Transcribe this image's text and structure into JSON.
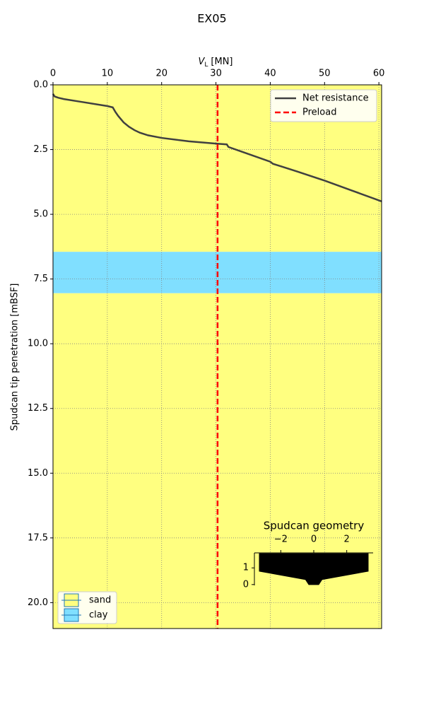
{
  "chart_data": [
    {
      "type": "line",
      "title": "EX05",
      "x_label": "V",
      "x_label_sub": "L",
      "x_label_unit": "[MN]",
      "y_label": "Spudcan tip penetration [mBSF]",
      "xlim": [
        0,
        60.5
      ],
      "ylim": [
        0,
        21
      ],
      "y_inverted": true,
      "grid": true,
      "xticks": [
        0,
        10,
        20,
        30,
        40,
        50,
        60
      ],
      "yticks": [
        {
          "value": 0,
          "label": "0.0"
        },
        2.5,
        {
          "value": 5,
          "label": "5.0"
        },
        7.5,
        {
          "value": 10,
          "label": "10.0"
        },
        12.5,
        {
          "value": 15,
          "label": "15.0"
        },
        17.5,
        {
          "value": 20,
          "label": "20.0"
        }
      ],
      "series": [
        {
          "name": "Net resistance",
          "color": "#404040",
          "x": [
            0,
            0.3,
            1,
            2,
            5,
            10,
            11,
            11.5,
            12,
            13,
            14,
            15,
            16,
            17.5,
            20,
            25,
            30,
            32,
            32.3,
            35,
            40,
            40.5,
            42,
            45,
            50,
            55,
            60.5
          ],
          "y": [
            0.35,
            0.45,
            0.5,
            0.55,
            0.65,
            0.82,
            0.87,
            1.05,
            1.2,
            1.45,
            1.62,
            1.75,
            1.85,
            1.95,
            2.05,
            2.18,
            2.27,
            2.3,
            2.4,
            2.6,
            2.97,
            3.05,
            3.15,
            3.35,
            3.7,
            4.08,
            4.5
          ]
        }
      ],
      "preload": {
        "name": "Preload",
        "color": "#ff0000",
        "value": 30.3
      },
      "soil_types": [
        {
          "name": "sand",
          "color": "#ffff80"
        },
        {
          "name": "clay",
          "color": "#80dfff"
        }
      ],
      "layers": {
        "soil": [
          0,
          1,
          0
        ],
        "top": [
          0,
          6.45,
          8.05
        ],
        "bottom": [
          6.45,
          8.05,
          21
        ]
      }
    },
    {
      "type": "polygon",
      "title": "Spudcan geometry",
      "color": "#000000",
      "xlim": [
        -3.6,
        3.6
      ],
      "ylim": [
        -0.05,
        1.9
      ],
      "xticks": [
        {
          "value": -2,
          "label": "−2"
        },
        0,
        2
      ],
      "yticks": [
        0,
        1
      ],
      "x": [
        -3.3,
        3.3,
        3.3,
        0.5,
        0.3,
        -0.3,
        -0.5,
        -3.3
      ],
      "y": [
        1.85,
        1.85,
        0.8,
        0.3,
        0,
        0,
        0.3,
        0.8
      ]
    }
  ]
}
